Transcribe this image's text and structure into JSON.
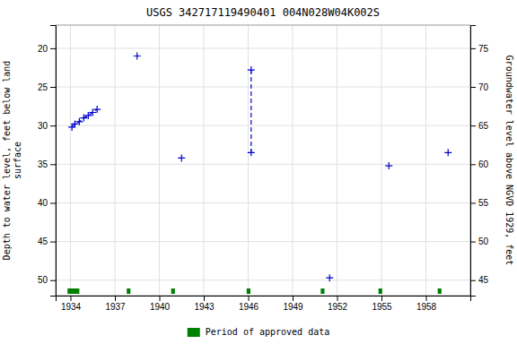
{
  "chart_data": {
    "type": "line",
    "title": "USGS 342717119490401 004N028W04K002S",
    "ylabel": "Depth to water level, feet below land\nsurface",
    "y2label": "Groundwater level above NGVD 1929, feet",
    "xlim": [
      1933,
      1961
    ],
    "xticks": [
      1934,
      1937,
      1940,
      1943,
      1946,
      1949,
      1952,
      1955,
      1958
    ],
    "ylim": [
      52,
      17
    ],
    "yticks": [
      20,
      25,
      30,
      35,
      40,
      45,
      50
    ],
    "y2lim": [
      43,
      78
    ],
    "y2ticks": [
      45,
      50,
      55,
      60,
      65,
      70,
      75
    ],
    "grid": true,
    "legend": "bottom",
    "series": [
      {
        "type": "scatter",
        "marker": "plus",
        "color": "#0000cc",
        "x": [
          1938.5,
          1941.5,
          1951.5,
          1955.5,
          1959.5
        ],
        "values": [
          21.0,
          34.2,
          49.7,
          35.2,
          33.5
        ]
      },
      {
        "type": "line",
        "line_style": "dashed",
        "marker": "plus",
        "color": "#0000cc",
        "x": [
          1934.1,
          1934.3,
          1934.6,
          1934.9,
          1935.2,
          1935.5,
          1935.8
        ],
        "values": [
          30.2,
          29.8,
          29.5,
          29.0,
          28.7,
          28.3,
          27.9
        ]
      },
      {
        "type": "line",
        "line_style": "dashed",
        "color": "#0000cc",
        "x": [
          1946.2,
          1946.2,
          1946.2,
          1946.2,
          1946.2,
          1946.2,
          1946.2,
          1946.2,
          1946.2,
          1946.2,
          1946.2,
          1946.2
        ],
        "values": [
          22.8,
          23.5,
          24.5,
          25.5,
          26.5,
          27.5,
          28.5,
          29.5,
          30.5,
          31.5,
          32.5,
          33.5
        ]
      },
      {
        "type": "scatter",
        "marker": "plus",
        "color": "#0000cc",
        "x": [
          1946.2,
          1946.2
        ],
        "values": [
          22.8,
          33.5
        ]
      },
      {
        "type": "bar",
        "name": "Period of approved data",
        "color": "#008000",
        "x": [
          1933.8,
          1937.8,
          1940.8,
          1945.9,
          1950.9,
          1954.8,
          1958.8
        ],
        "widths": [
          0.8,
          0.25,
          0.25,
          0.25,
          0.25,
          0.25,
          0.25
        ]
      }
    ]
  }
}
